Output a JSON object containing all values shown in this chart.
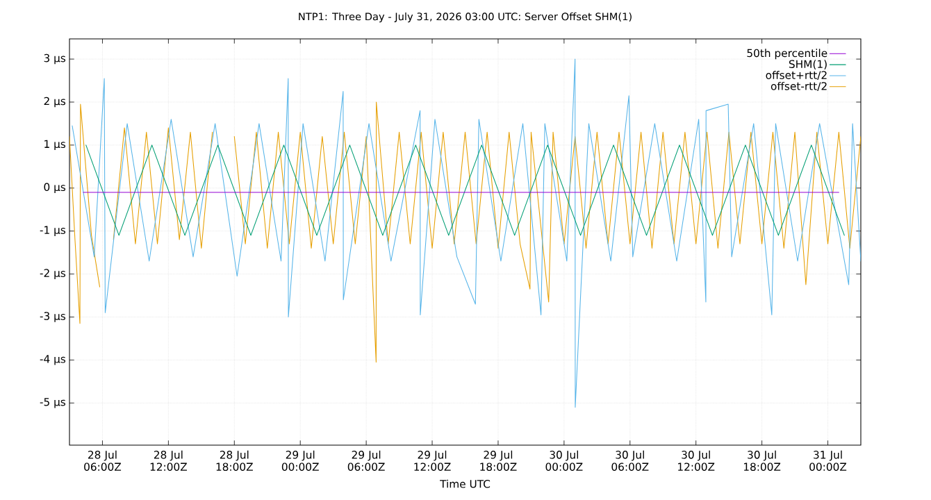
{
  "chart_data": {
    "type": "line",
    "title": "NTP1: Three Day - July 31, 2026 03:00 UTC: Server Offset SHM(1)",
    "xlabel": "Time UTC",
    "xlim": [
      "2026-07-28T03:00",
      "2026-07-31T03:00"
    ],
    "xticks": [
      {
        "value": "2026-07-28T06:00",
        "label": "28 Jul 06:00Z"
      },
      {
        "value": "2026-07-28T12:00",
        "label": "28 Jul 12:00Z"
      },
      {
        "value": "2026-07-28T18:00",
        "label": "28 Jul 18:00Z"
      },
      {
        "value": "2026-07-29T00:00",
        "label": "29 Jul 00:00Z"
      },
      {
        "value": "2026-07-29T06:00",
        "label": "29 Jul 06:00Z"
      },
      {
        "value": "2026-07-29T12:00",
        "label": "29 Jul 12:00Z"
      },
      {
        "value": "2026-07-29T18:00",
        "label": "29 Jul 18:00Z"
      },
      {
        "value": "2026-07-30T00:00",
        "label": "30 Jul 00:00Z"
      },
      {
        "value": "2026-07-30T06:00",
        "label": "30 Jul 06:00Z"
      },
      {
        "value": "2026-07-30T12:00",
        "label": "30 Jul 12:00Z"
      },
      {
        "value": "2026-07-30T18:00",
        "label": "30 Jul 18:00Z"
      },
      {
        "value": "2026-07-31T00:00",
        "label": "31 Jul 00:00Z"
      }
    ],
    "ylim": [
      -5.98,
      3.47
    ],
    "yticks": [
      {
        "value": -5,
        "label": "-5 µs"
      },
      {
        "value": -4,
        "label": "-4 µs"
      },
      {
        "value": -3,
        "label": "-3 µs"
      },
      {
        "value": -2,
        "label": "-2 µs"
      },
      {
        "value": -1,
        "label": "-1 µs"
      },
      {
        "value": 0,
        "label": "0 µs"
      },
      {
        "value": 1,
        "label": "1 µs"
      },
      {
        "value": 2,
        "label": "2 µs"
      },
      {
        "value": 3,
        "label": "3 µs"
      }
    ],
    "grid": true,
    "legend": "top right",
    "marker": "none",
    "line_style": "solid",
    "series": [
      {
        "name": "50th percentile",
        "color": "#9400d3",
        "x": [
          "2026-07-28T04:15",
          "2026-07-31T01:00"
        ],
        "values": [
          -0.1,
          -0.1
        ]
      },
      {
        "name": "SHM(1)",
        "color": "#009e73",
        "x": [
          "2026-07-28T04:30",
          "2026-07-28T07:30",
          "2026-07-28T10:30",
          "2026-07-28T13:30",
          "2026-07-28T16:30",
          "2026-07-28T19:30",
          "2026-07-28T22:30",
          "2026-07-29T01:30",
          "2026-07-29T04:30",
          "2026-07-29T07:30",
          "2026-07-29T10:30",
          "2026-07-29T13:30",
          "2026-07-29T16:30",
          "2026-07-29T19:30",
          "2026-07-29T22:30",
          "2026-07-30T01:30",
          "2026-07-30T04:30",
          "2026-07-30T07:30",
          "2026-07-30T10:30",
          "2026-07-30T13:30",
          "2026-07-30T16:30",
          "2026-07-30T19:30",
          "2026-07-30T22:30",
          "2026-07-31T01:30"
        ],
        "values": [
          1.0,
          -1.1,
          1.0,
          -1.1,
          1.0,
          -1.1,
          1.0,
          -1.1,
          1.0,
          -1.1,
          1.0,
          -1.1,
          1.0,
          -1.1,
          1.0,
          -1.1,
          1.0,
          -1.1,
          1.0,
          -1.1,
          1.0,
          -1.1,
          1.0,
          -1.1
        ]
      },
      {
        "name": "offset+rtt/2",
        "color": "#56b4e9",
        "x": [
          "2026-07-28T03:15",
          "2026-07-28T05:15",
          "2026-07-28T06:10",
          "2026-07-28T06:15",
          "2026-07-28T08:15",
          "2026-07-28T10:15",
          "2026-07-28T12:15",
          "2026-07-28T14:15",
          "2026-07-28T16:15",
          "2026-07-28T18:15",
          "2026-07-28T20:15",
          "2026-07-28T22:15",
          "2026-07-28T22:54",
          "2026-07-28T22:55",
          "2026-07-29T00:15",
          "2026-07-29T02:15",
          "2026-07-29T03:54",
          "2026-07-29T03:55",
          "2026-07-29T06:15",
          "2026-07-29T08:15",
          "2026-07-29T10:54",
          "2026-07-29T10:55",
          "2026-07-29T12:15",
          "2026-07-29T14:15",
          "2026-07-29T15:56",
          "2026-07-29T16:15",
          "2026-07-29T18:15",
          "2026-07-29T20:15",
          "2026-07-29T21:54",
          "2026-07-29T22:15",
          "2026-07-30T00:15",
          "2026-07-30T01:00",
          "2026-07-30T01:01",
          "2026-07-30T02:15",
          "2026-07-30T04:15",
          "2026-07-30T05:54",
          "2026-07-30T06:15",
          "2026-07-30T08:15",
          "2026-07-30T10:15",
          "2026-07-30T12:15",
          "2026-07-30T12:54",
          "2026-07-30T12:55",
          "2026-07-30T14:56",
          "2026-07-30T15:15",
          "2026-07-30T17:15",
          "2026-07-30T18:54",
          "2026-07-30T19:15",
          "2026-07-30T21:15",
          "2026-07-30T23:15",
          "2026-07-31T01:54",
          "2026-07-31T02:15",
          "2026-07-31T03:00"
        ],
        "values": [
          1.45,
          -1.6,
          2.55,
          -2.9,
          1.5,
          -1.7,
          1.6,
          -1.6,
          1.5,
          -2.05,
          1.5,
          -1.7,
          2.55,
          -3.0,
          1.5,
          -1.7,
          2.25,
          -2.6,
          1.5,
          -1.7,
          1.8,
          -2.95,
          1.6,
          -1.6,
          -2.7,
          1.6,
          -1.7,
          1.5,
          -2.95,
          1.5,
          -1.7,
          3.0,
          -5.1,
          1.5,
          -1.7,
          2.15,
          -1.6,
          1.5,
          -1.7,
          1.6,
          -2.65,
          1.8,
          1.95,
          -1.6,
          1.5,
          -2.95,
          1.5,
          -1.7,
          1.5,
          -2.25,
          1.5,
          -1.7
        ]
      },
      {
        "name": "offset-rtt/2",
        "color": "#e69f00",
        "x": [
          "2026-07-28T03:00",
          "2026-07-28T03:30",
          "2026-07-28T03:57",
          "2026-07-28T04:00",
          "2026-07-28T05:00",
          "2026-07-28T05:45",
          "2026-07-28T06:06",
          "2026-07-28T07:00",
          "2026-07-28T08:00",
          "2026-07-28T09:00",
          "2026-07-28T10:00",
          "2026-07-28T11:00",
          "2026-07-28T12:00",
          "2026-07-28T13:00",
          "2026-07-28T14:00",
          "2026-07-28T15:00",
          "2026-07-28T16:00",
          "2026-07-28T16:54",
          "2026-07-28T16:55",
          "2026-07-28T18:00",
          "2026-07-28T19:00",
          "2026-07-28T20:00",
          "2026-07-28T21:00",
          "2026-07-28T22:00",
          "2026-07-28T23:00",
          "2026-07-29T00:00",
          "2026-07-29T01:00",
          "2026-07-29T02:00",
          "2026-07-29T03:00",
          "2026-07-29T04:00",
          "2026-07-29T05:00",
          "2026-07-29T06:00",
          "2026-07-29T06:54",
          "2026-07-29T06:55",
          "2026-07-29T08:00",
          "2026-07-29T09:00",
          "2026-07-29T10:00",
          "2026-07-29T11:00",
          "2026-07-29T12:00",
          "2026-07-29T13:00",
          "2026-07-29T14:00",
          "2026-07-29T15:00",
          "2026-07-29T16:00",
          "2026-07-29T17:00",
          "2026-07-29T18:00",
          "2026-07-29T19:00",
          "2026-07-29T20:00",
          "2026-07-29T20:54",
          "2026-07-29T21:00",
          "2026-07-29T22:36",
          "2026-07-29T23:00",
          "2026-07-30T00:00",
          "2026-07-30T01:00",
          "2026-07-30T02:00",
          "2026-07-30T03:00",
          "2026-07-30T04:00",
          "2026-07-30T05:00",
          "2026-07-30T06:00",
          "2026-07-30T07:00",
          "2026-07-30T08:00",
          "2026-07-30T09:00",
          "2026-07-30T10:00",
          "2026-07-30T11:00",
          "2026-07-30T12:00",
          "2026-07-30T13:00",
          "2026-07-30T14:00",
          "2026-07-30T15:00",
          "2026-07-30T16:00",
          "2026-07-30T17:00",
          "2026-07-30T18:00",
          "2026-07-30T19:00",
          "2026-07-30T20:00",
          "2026-07-30T21:00",
          "2026-07-30T22:00",
          "2026-07-30T23:00",
          "2026-07-31T00:00",
          "2026-07-31T01:00",
          "2026-07-31T02:00",
          "2026-07-31T03:00"
        ],
        "values": [
          1.2,
          -1.2,
          -3.15,
          1.95,
          -1.1,
          -2.3,
          null,
          -1.2,
          1.4,
          -1.3,
          1.3,
          -1.3,
          1.4,
          -1.2,
          1.3,
          -1.4,
          1.3,
          null,
          null,
          1.2,
          -1.3,
          1.3,
          -1.4,
          1.3,
          -1.3,
          1.3,
          -1.4,
          1.2,
          -1.3,
          1.3,
          -1.3,
          1.2,
          -4.05,
          2.0,
          -1.3,
          1.3,
          -1.3,
          1.3,
          -1.4,
          1.3,
          -1.3,
          1.3,
          -1.3,
          1.3,
          -1.4,
          1.3,
          -1.3,
          -2.35,
          1.3,
          -2.65,
          1.3,
          -1.3,
          1.2,
          -1.4,
          1.3,
          -1.3,
          1.3,
          -1.3,
          1.3,
          -1.4,
          1.3,
          -1.3,
          1.3,
          -1.3,
          1.3,
          -1.4,
          1.3,
          -1.3,
          1.3,
          -1.3,
          1.3,
          -1.4,
          1.3,
          -2.25,
          1.3,
          -1.3,
          1.3,
          -1.4,
          1.2
        ]
      }
    ]
  }
}
